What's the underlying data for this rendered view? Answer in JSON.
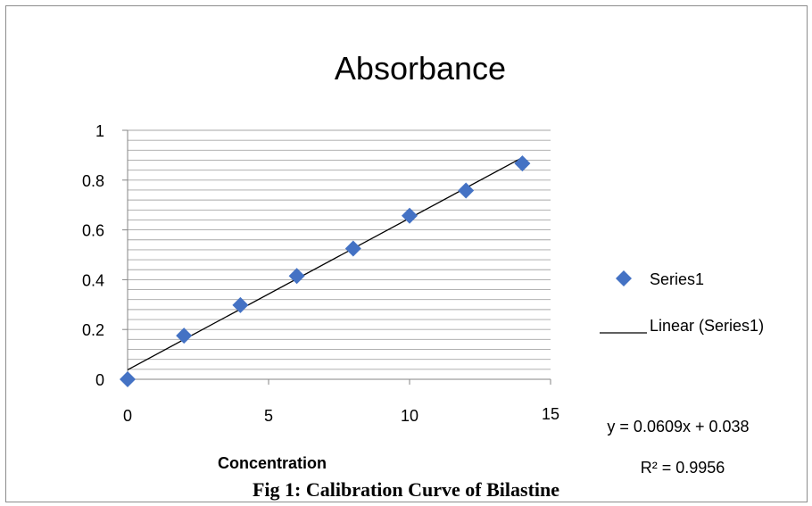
{
  "chart_data": {
    "type": "scatter",
    "title": "Absorbance",
    "xlabel": "Concentration",
    "ylabel": "",
    "xlim": [
      0,
      15
    ],
    "ylim": [
      0,
      1
    ],
    "x_ticks": [
      "0",
      "5",
      "10",
      "15"
    ],
    "y_ticks": [
      "0",
      "0.2",
      "0.4",
      "0.6",
      "0.8",
      "1"
    ],
    "x_tick_values": [
      0,
      5,
      10,
      15
    ],
    "y_tick_values": [
      0,
      0.2,
      0.4,
      0.6,
      0.8,
      1
    ],
    "grid": "horizontal-minor",
    "legend_position": "right",
    "series": [
      {
        "name": "Series1",
        "x": [
          0,
          2,
          4,
          6,
          8,
          10,
          12,
          14
        ],
        "y": [
          0.0,
          0.175,
          0.298,
          0.415,
          0.525,
          0.657,
          0.758,
          0.867
        ],
        "color": "#4472C4"
      }
    ],
    "trendline": {
      "name": "Linear (Series1)",
      "slope": 0.0609,
      "intercept": 0.038,
      "x_range": [
        0,
        14
      ],
      "equation": "y = 0.0609x + 0.038",
      "r_squared": "R² = 0.9956",
      "color": "#000000"
    }
  },
  "caption": "Fig 1: Calibration Curve of Bilastine"
}
